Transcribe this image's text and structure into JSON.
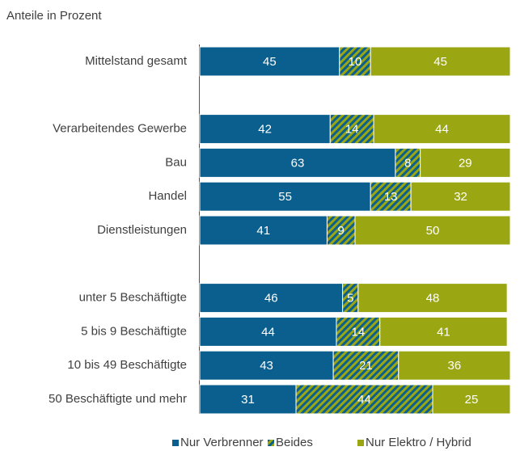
{
  "chart_data": {
    "type": "stacked_barh",
    "subtitle": "Anteile in Prozent",
    "categories": [
      "Mittelstand gesamt",
      null,
      "Verarbeitendes Gewerbe",
      "Bau",
      "Handel",
      "Dienstleistungen",
      null,
      "unter 5 Beschäftigte",
      "5 bis 9 Beschäftigte",
      "10 bis 49 Beschäftigte",
      "50 Beschäftigte und mehr"
    ],
    "series": [
      {
        "name": "Nur Verbrenner",
        "color": "#0b5f8e",
        "values": [
          45,
          null,
          42,
          63,
          55,
          41,
          null,
          46,
          44,
          43,
          31
        ]
      },
      {
        "name": "Beides",
        "color": "#0b5f8e",
        "hatch_color": "#9aa712",
        "values": [
          10,
          null,
          14,
          8,
          13,
          9,
          null,
          5,
          14,
          21,
          44
        ]
      },
      {
        "name": "Nur Elektro / Hybrid",
        "color": "#9aa712",
        "values": [
          45,
          null,
          44,
          29,
          32,
          50,
          null,
          48,
          41,
          36,
          25
        ]
      }
    ],
    "xlim": [
      0,
      100
    ],
    "legend": "bottom"
  }
}
